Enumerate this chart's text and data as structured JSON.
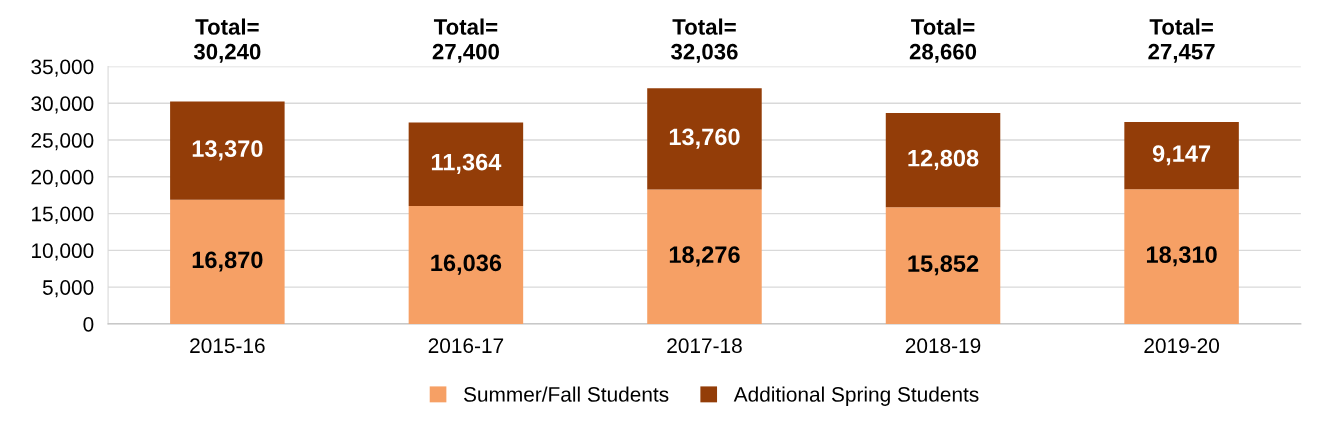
{
  "chart_data": {
    "type": "bar",
    "stacked": true,
    "categories": [
      "2015-16",
      "2016-17",
      "2017-18",
      "2018-19",
      "2019-20"
    ],
    "series": [
      {
        "name": "Summer/Fall Students",
        "color": "#f6a065",
        "values": [
          16870,
          16036,
          18276,
          15852,
          18310
        ],
        "value_labels": [
          "16,870",
          "16,036",
          "18,276",
          "15,852",
          "18,310"
        ]
      },
      {
        "name": "Additional Spring Students",
        "color": "#933d08",
        "values": [
          13370,
          11364,
          13760,
          12808,
          9147
        ],
        "value_labels": [
          "13,370",
          "11,364",
          "13,760",
          "12,808",
          "9,147"
        ]
      }
    ],
    "totals": [
      "Total=\n30,240",
      "Total=\n27,400",
      "Total=\n32,036",
      "Total=\n28,660",
      "Total=\n27,457"
    ],
    "ylim": [
      0,
      35000
    ],
    "yticks": [
      {
        "value": 0,
        "label": "0"
      },
      {
        "value": 5000,
        "label": "5,000"
      },
      {
        "value": 10000,
        "label": "10,000"
      },
      {
        "value": 15000,
        "label": "15,000"
      },
      {
        "value": 20000,
        "label": "20,000"
      },
      {
        "value": 25000,
        "label": "25,000"
      },
      {
        "value": 30000,
        "label": "30,000"
      },
      {
        "value": 35000,
        "label": "35,000"
      }
    ],
    "grid": "y",
    "legend": "bottom"
  }
}
